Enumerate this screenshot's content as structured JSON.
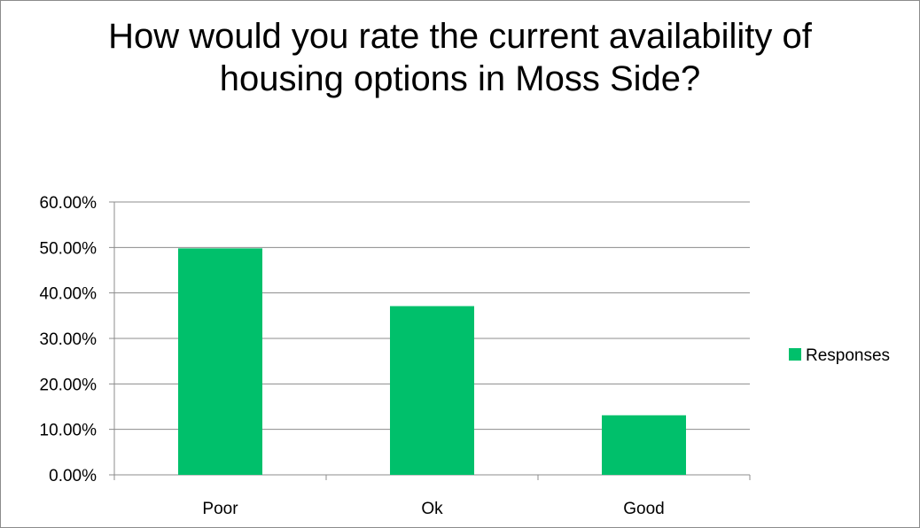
{
  "chart_data": {
    "type": "bar",
    "title": "How would you rate the current availability of housing options in Moss Side?",
    "categories": [
      "Poor",
      "Ok",
      "Good"
    ],
    "series": [
      {
        "name": "Responses",
        "values": [
          49.8,
          37.1,
          13.1
        ],
        "color": "#00c06b"
      }
    ],
    "ylim": [
      0,
      60
    ],
    "yticks": [
      0,
      10,
      20,
      30,
      40,
      50,
      60
    ],
    "ytick_labels": [
      "0.00%",
      "10.00%",
      "20.00%",
      "30.00%",
      "40.00%",
      "50.00%",
      "60.00%"
    ],
    "xlabel": "",
    "ylabel": "",
    "grid": true,
    "legend_position": "right",
    "gridline_color": "#8c8c8c"
  }
}
